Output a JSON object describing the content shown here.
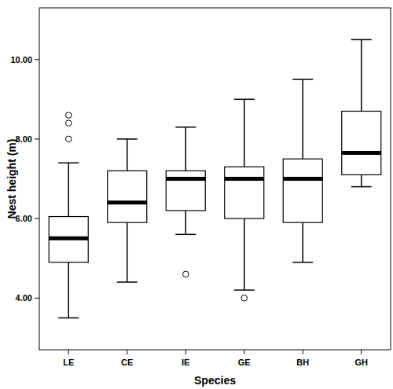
{
  "chart_data": {
    "type": "box",
    "x_label": "Species",
    "y_label": "Nest height (m)",
    "categories": [
      "LE",
      "CE",
      "IE",
      "GE",
      "BH",
      "GH"
    ],
    "boxes": [
      {
        "whisker_low": 3.5,
        "q1": 4.9,
        "median": 5.5,
        "q3": 6.05,
        "whisker_high": 7.4,
        "outliers": [
          8.0,
          8.4,
          8.6
        ]
      },
      {
        "whisker_low": 4.4,
        "q1": 5.9,
        "median": 6.4,
        "q3": 7.2,
        "whisker_high": 8.0,
        "outliers": []
      },
      {
        "whisker_low": 5.6,
        "q1": 6.2,
        "median": 7.0,
        "q3": 7.2,
        "whisker_high": 8.3,
        "outliers": [
          4.6
        ]
      },
      {
        "whisker_low": 4.2,
        "q1": 6.0,
        "median": 7.0,
        "q3": 7.3,
        "whisker_high": 9.0,
        "outliers": [
          4.0
        ]
      },
      {
        "whisker_low": 4.9,
        "q1": 5.9,
        "median": 7.0,
        "q3": 7.5,
        "whisker_high": 9.5,
        "outliers": []
      },
      {
        "whisker_low": 6.8,
        "q1": 7.1,
        "median": 7.65,
        "q3": 8.7,
        "whisker_high": 10.5,
        "outliers": []
      }
    ],
    "color": "#ffffff",
    "ylim": [
      2.7,
      11.3
    ],
    "yticks": [
      {
        "value": 4,
        "label": "4.00"
      },
      {
        "value": 6,
        "label": "6.00"
      },
      {
        "value": 8,
        "label": "8.00"
      },
      {
        "value": 10,
        "label": "10.00"
      }
    ],
    "grid": false
  }
}
